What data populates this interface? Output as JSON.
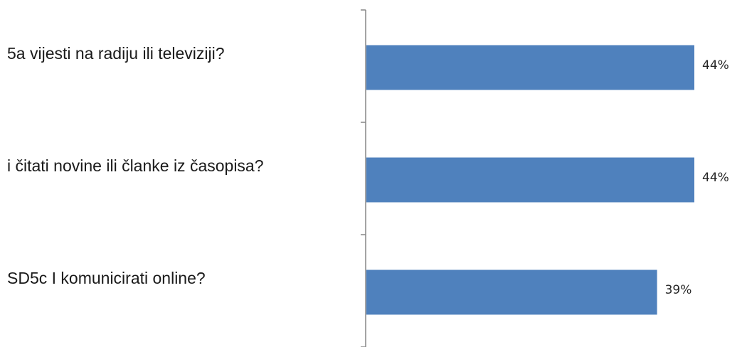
{
  "chart_data": {
    "type": "bar",
    "orientation": "horizontal",
    "categories": [
      "5a vijesti na radiju ili televiziji?",
      "i čitati novine ili članke iz časopisa?",
      "SD5c I komunicirati online?"
    ],
    "values": [
      44,
      44,
      39
    ],
    "value_labels": [
      "44%",
      "44%",
      "39%"
    ],
    "unit": "%",
    "title": "",
    "xlabel": "",
    "ylabel": "",
    "legend": "none",
    "grid": false,
    "bar_color": "#4f81bd",
    "axis_color": "#868686"
  }
}
